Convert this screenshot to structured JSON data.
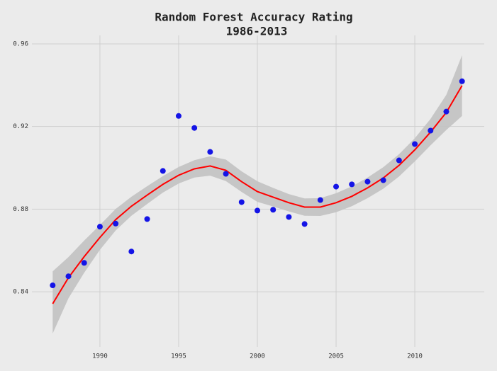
{
  "chart_data": {
    "type": "scatter",
    "title": "Random Forest Accuracy Rating",
    "subtitle": "1986-2013",
    "x": [
      1987,
      1988,
      1989,
      1990,
      1991,
      1992,
      1993,
      1994,
      1995,
      1996,
      1997,
      1998,
      1999,
      2000,
      2001,
      2002,
      2003,
      2004,
      2005,
      2006,
      2007,
      2008,
      2009,
      2010,
      2011,
      2012,
      2013
    ],
    "series": [
      {
        "color": "#1414e6",
        "values": [
          0.8431,
          0.8475,
          0.854,
          0.8715,
          0.873,
          0.8595,
          0.8752,
          0.8985,
          0.9251,
          0.9193,
          0.9077,
          0.8971,
          0.8834,
          0.8793,
          0.8797,
          0.8762,
          0.8728,
          0.8844,
          0.8909,
          0.892,
          0.8933,
          0.894,
          0.9036,
          0.9115,
          0.918,
          0.9272,
          0.9419
        ]
      }
    ],
    "smooth": {
      "color": "#ff0000",
      "band_color": "#c2c2c2",
      "values": [
        0.8342,
        0.8468,
        0.857,
        0.8663,
        0.8749,
        0.8814,
        0.8868,
        0.892,
        0.8964,
        0.8995,
        0.9009,
        0.8988,
        0.8933,
        0.8885,
        0.8858,
        0.8831,
        0.881,
        0.881,
        0.8831,
        0.8862,
        0.8903,
        0.8951,
        0.9012,
        0.9087,
        0.9173,
        0.9268,
        0.9398
      ],
      "upper": [
        0.8499,
        0.8568,
        0.8648,
        0.8723,
        0.8801,
        0.886,
        0.8911,
        0.896,
        0.9004,
        0.9037,
        0.9056,
        0.904,
        0.8983,
        0.8935,
        0.8903,
        0.8873,
        0.8852,
        0.8853,
        0.8877,
        0.891,
        0.8953,
        0.9003,
        0.9066,
        0.9143,
        0.9237,
        0.9353,
        0.9545
      ],
      "lower": [
        0.8198,
        0.8368,
        0.8492,
        0.8603,
        0.8697,
        0.8768,
        0.8825,
        0.888,
        0.8924,
        0.8953,
        0.8962,
        0.8936,
        0.8883,
        0.8835,
        0.8813,
        0.8789,
        0.8768,
        0.8767,
        0.8785,
        0.8814,
        0.8853,
        0.8899,
        0.8958,
        0.9031,
        0.9109,
        0.9183,
        0.9251
      ]
    },
    "xlim": [
      1985.68,
      2014.41
    ],
    "ylim": [
      0.8133,
      0.9641
    ],
    "xticks": [
      1990,
      1995,
      2000,
      2005,
      2010
    ],
    "yticks": [
      0.84,
      0.88,
      0.92,
      0.96
    ],
    "grid": true
  }
}
